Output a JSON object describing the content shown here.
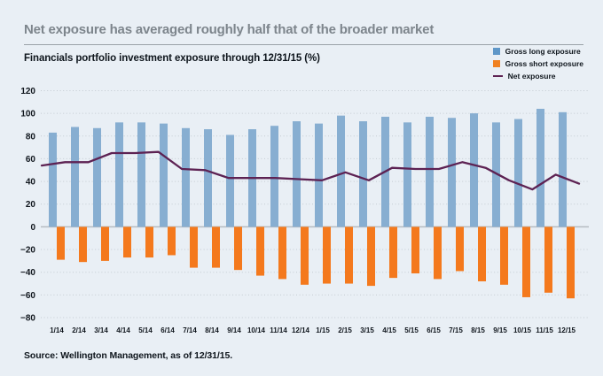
{
  "header": {
    "title": "Net exposure has averaged roughly half that of the broader market",
    "subtitle": "Financials portfolio investment exposure through 12/31/15 (%)"
  },
  "legend": {
    "items": [
      {
        "label": "Gross long exposure",
        "swatch": "square",
        "color": "#5f97c8"
      },
      {
        "label": "Gross short exposure",
        "swatch": "square",
        "color": "#f08122"
      },
      {
        "label": "Net exposure",
        "swatch": "line",
        "color": "#5d2253"
      }
    ]
  },
  "footer": {
    "source": "Source: Wellington Management, as of 12/31/15."
  },
  "chart_data": {
    "type": "bar+line",
    "title": "Financials portfolio investment exposure through 12/31/15 (%)",
    "categories": [
      "1/14",
      "2/14",
      "3/14",
      "4/14",
      "5/14",
      "6/14",
      "7/14",
      "8/14",
      "9/14",
      "10/14",
      "11/14",
      "12/14",
      "1/15",
      "2/15",
      "3/15",
      "4/15",
      "5/15",
      "6/15",
      "7/15",
      "8/15",
      "9/15",
      "10/15",
      "11/15",
      "12/15"
    ],
    "series": [
      {
        "name": "Gross long exposure",
        "type": "bar",
        "color": "#87aed1",
        "values": [
          83,
          88,
          87,
          92,
          92,
          91,
          87,
          86,
          81,
          86,
          89,
          93,
          91,
          98,
          93,
          97,
          92,
          97,
          96,
          100,
          92,
          95,
          104,
          101
        ]
      },
      {
        "name": "Gross short exposure",
        "type": "bar",
        "color": "#f4791d",
        "values": [
          -29,
          -31,
          -30,
          -27,
          -27,
          -25,
          -36,
          -36,
          -38,
          -43,
          -46,
          -51,
          -50,
          -50,
          -52,
          -45,
          -41,
          -46,
          -39,
          -48,
          -51,
          -62,
          -58,
          -63
        ]
      },
      {
        "name": "Net exposure",
        "type": "line",
        "color": "#5d2253",
        "values": [
          54,
          57,
          57,
          65,
          65,
          66,
          51,
          50,
          43,
          43,
          43,
          42,
          41,
          48,
          41,
          52,
          51,
          51,
          57,
          52,
          41,
          33,
          46,
          38
        ]
      }
    ],
    "ylim": [
      -80,
      120
    ],
    "ytick_interval": 20,
    "yticks": [
      {
        "label": "120",
        "value": 120
      },
      {
        "label": "100",
        "value": 100
      },
      {
        "label": "80",
        "value": 80
      },
      {
        "label": "60",
        "value": 60
      },
      {
        "label": "40",
        "value": 40
      },
      {
        "label": "20",
        "value": 20
      },
      {
        "label": "0",
        "value": 0
      },
      {
        "label": "−20",
        "value": -20
      },
      {
        "label": "−40",
        "value": -40
      },
      {
        "label": "−60",
        "value": -60
      },
      {
        "label": "−80",
        "value": -80
      }
    ],
    "grid": "dotted-horizontal",
    "grid_color": "#c4cbd2",
    "zero_line_color": "#b6bcc2",
    "legend_position": "top-right"
  }
}
